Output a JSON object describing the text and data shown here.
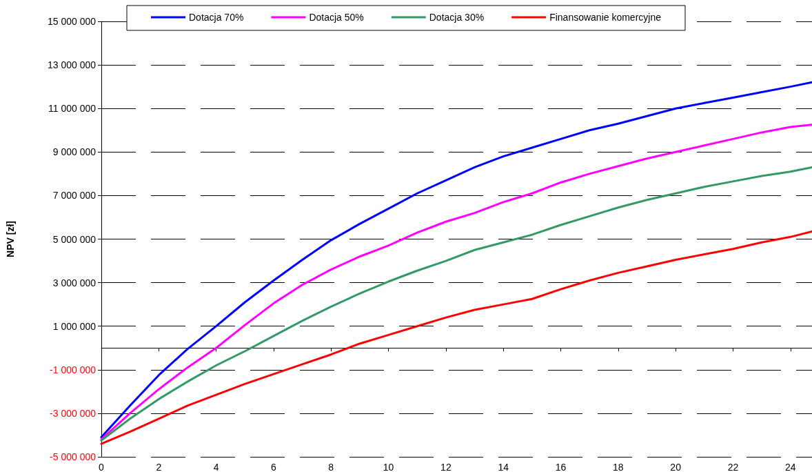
{
  "chart_data": {
    "type": "line",
    "ylabel": "NPV [zł]",
    "x": [
      0,
      1,
      2,
      3,
      4,
      5,
      6,
      7,
      8,
      9,
      10,
      11,
      12,
      13,
      14,
      15,
      16,
      17,
      18,
      19,
      20,
      21,
      22,
      23,
      24,
      24.75
    ],
    "series": [
      {
        "name": "Dotacja 70%",
        "color": "#0000ff",
        "values": [
          -4100000,
          -2650000,
          -1250000,
          -50000,
          1000000,
          2100000,
          3100000,
          4050000,
          4950000,
          5700000,
          6400000,
          7100000,
          7700000,
          8300000,
          8800000,
          9200000,
          9600000,
          10000000,
          10300000,
          10650000,
          11000000,
          11250000,
          11500000,
          11750000,
          12000000,
          12200000
        ]
      },
      {
        "name": "Dotacja 50%",
        "color": "#ff00ff",
        "values": [
          -4200000,
          -3000000,
          -1900000,
          -900000,
          0,
          1050000,
          2050000,
          2900000,
          3600000,
          4200000,
          4700000,
          5300000,
          5800000,
          6200000,
          6700000,
          7100000,
          7600000,
          8000000,
          8350000,
          8700000,
          9000000,
          9300000,
          9600000,
          9900000,
          10150000,
          10250000
        ]
      },
      {
        "name": "Dotacja 30%",
        "color": "#339966",
        "values": [
          -4250000,
          -3250000,
          -2350000,
          -1550000,
          -800000,
          -150000,
          550000,
          1250000,
          1900000,
          2500000,
          3050000,
          3550000,
          4000000,
          4500000,
          4850000,
          5200000,
          5650000,
          6050000,
          6450000,
          6800000,
          7100000,
          7400000,
          7650000,
          7900000,
          8100000,
          8300000
        ]
      },
      {
        "name": "Finansowanie komercyjne",
        "color": "#ff0000",
        "values": [
          -4400000,
          -3850000,
          -3250000,
          -2650000,
          -2150000,
          -1650000,
          -1200000,
          -750000,
          -300000,
          200000,
          600000,
          1000000,
          1400000,
          1750000,
          2000000,
          2250000,
          2700000,
          3100000,
          3450000,
          3750000,
          4050000,
          4300000,
          4550000,
          4850000,
          5100000,
          5350000
        ]
      }
    ],
    "xlim": [
      0,
      24.75
    ],
    "xticks": [
      0,
      2,
      4,
      6,
      8,
      10,
      12,
      14,
      16,
      18,
      20,
      22,
      24
    ],
    "ylim": [
      -5000000,
      15000000
    ],
    "yticks": [
      {
        "value": -5000000,
        "label": "-5 000 000"
      },
      {
        "value": -3000000,
        "label": "-3 000 000"
      },
      {
        "value": -1000000,
        "label": "-1 000 000"
      },
      {
        "value": 1000000,
        "label": "1 000 000"
      },
      {
        "value": 3000000,
        "label": "3 000 000"
      },
      {
        "value": 5000000,
        "label": "5 000 000"
      },
      {
        "value": 7000000,
        "label": "7 000 000"
      },
      {
        "value": 9000000,
        "label": "9 000 000"
      },
      {
        "value": 11000000,
        "label": "11 000 000"
      },
      {
        "value": 13000000,
        "label": "13 000 000"
      },
      {
        "value": 15000000,
        "label": "15 000 000"
      }
    ],
    "grid": "y",
    "legend": "top",
    "marker": "none",
    "line_style": "solid"
  }
}
